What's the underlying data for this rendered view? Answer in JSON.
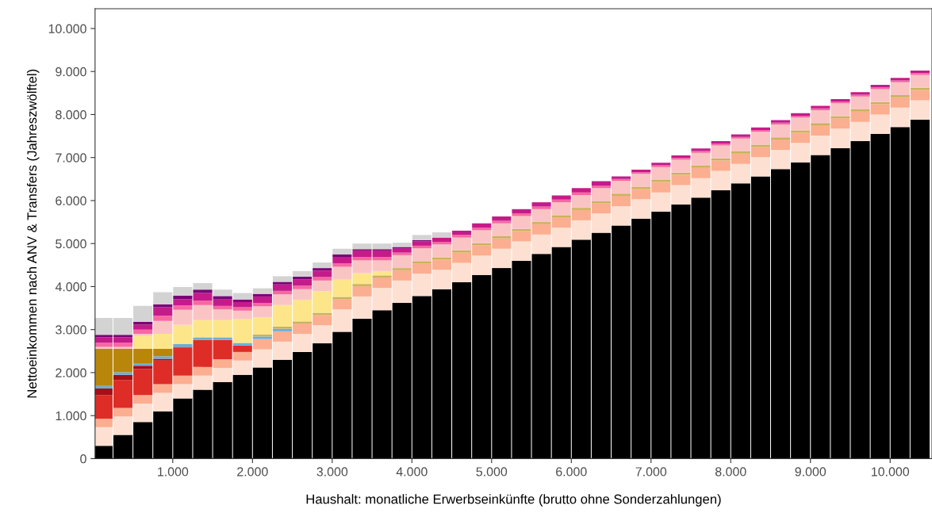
{
  "chart_data": {
    "type": "bar",
    "stacked": true,
    "xlabel": "Haushalt: monatliche Erwerbseinkünfte (brutto ohne Sonderzahlungen)",
    "ylabel": "Nettoeinkommen nach ANV & Transfers (Jahreszwölftel)",
    "x": [
      125,
      375,
      625,
      875,
      1125,
      1375,
      1625,
      1875,
      2125,
      2375,
      2625,
      2875,
      3125,
      3375,
      3625,
      3875,
      4125,
      4375,
      4625,
      4875,
      5125,
      5375,
      5625,
      5875,
      6125,
      6375,
      6625,
      6875,
      7125,
      7375,
      7625,
      7875,
      8125,
      8375,
      8625,
      8875,
      9125,
      9375,
      9625,
      9875,
      10125,
      10375
    ],
    "xlim": [
      25,
      10525
    ],
    "ylim": [
      0,
      10460
    ],
    "xticks": [
      {
        "value": 1000,
        "label": "1.000"
      },
      {
        "value": 2000,
        "label": "2.000"
      },
      {
        "value": 3000,
        "label": "3.000"
      },
      {
        "value": 4000,
        "label": "4.000"
      },
      {
        "value": 5000,
        "label": "5.000"
      },
      {
        "value": 6000,
        "label": "6.000"
      },
      {
        "value": 7000,
        "label": "7.000"
      },
      {
        "value": 8000,
        "label": "8.000"
      },
      {
        "value": 9000,
        "label": "9.000"
      },
      {
        "value": 10000,
        "label": "10.000"
      }
    ],
    "yticks": [
      0,
      {
        "value": 1000,
        "label": "1.000"
      },
      {
        "value": 2000,
        "label": "2.000"
      },
      {
        "value": 3000,
        "label": "3.000"
      },
      {
        "value": 4000,
        "label": "4.000"
      },
      {
        "value": 5000,
        "label": "5.000"
      },
      {
        "value": 6000,
        "label": "6.000"
      },
      {
        "value": 7000,
        "label": "7.000"
      },
      {
        "value": 8000,
        "label": "8.000"
      },
      {
        "value": 9000,
        "label": "9.000"
      },
      {
        "value": 10000,
        "label": "10.000"
      }
    ],
    "grid": false,
    "series": [
      {
        "color": "#000000",
        "values": [
          300,
          550,
          850,
          1100,
          1400,
          1600,
          1780,
          1950,
          2120,
          2300,
          2480,
          2680,
          2950,
          3250,
          3450,
          3620,
          3780,
          3940,
          4100,
          4270,
          4430,
          4600,
          4760,
          4920,
          5090,
          5250,
          5420,
          5580,
          5740,
          5910,
          6070,
          6240,
          6400,
          6560,
          6730,
          6890,
          7060,
          7220,
          7380,
          7550,
          7710,
          7880
        ]
      },
      {
        "color": "#fee0d2",
        "values": [
          430,
          430,
          430,
          430,
          330,
          330,
          330,
          330,
          420,
          420,
          420,
          420,
          520,
          520,
          520,
          520,
          520,
          450,
          450,
          450,
          450,
          450,
          450,
          450,
          450,
          450,
          450,
          450,
          450,
          450,
          450,
          450,
          450,
          450,
          450,
          450,
          450,
          450,
          450,
          450,
          450,
          450
        ]
      },
      {
        "color": "#fcae91",
        "values": [
          200,
          200,
          200,
          200,
          200,
          200,
          200,
          200,
          240,
          240,
          240,
          240,
          240,
          240,
          240,
          240,
          240,
          240,
          240,
          240,
          240,
          240,
          240,
          240,
          240,
          240,
          240,
          240,
          240,
          240,
          240,
          240,
          240,
          240,
          240,
          240,
          240,
          240,
          240,
          240,
          240,
          240
        ]
      },
      {
        "color": "#de2d26",
        "values": [
          550,
          650,
          600,
          550,
          650,
          630,
          450,
          150,
          0,
          0,
          0,
          0,
          0,
          0,
          0,
          0,
          0,
          0,
          0,
          0,
          0,
          0,
          0,
          0,
          0,
          0,
          0,
          0,
          0,
          0,
          0,
          0,
          0,
          0,
          0,
          0,
          0,
          0,
          0,
          0,
          0,
          0
        ]
      },
      {
        "color": "#a50f15",
        "values": [
          150,
          120,
          80,
          40,
          20,
          0,
          0,
          0,
          0,
          0,
          0,
          0,
          0,
          0,
          0,
          0,
          0,
          0,
          0,
          0,
          0,
          0,
          0,
          0,
          0,
          0,
          0,
          0,
          0,
          0,
          0,
          0,
          0,
          0,
          0,
          0,
          0,
          0,
          0,
          0,
          0,
          0
        ]
      },
      {
        "color": "#6baed6",
        "values": [
          60,
          60,
          60,
          60,
          60,
          60,
          60,
          60,
          60,
          60,
          0,
          0,
          0,
          0,
          0,
          0,
          0,
          0,
          0,
          0,
          0,
          0,
          0,
          0,
          0,
          0,
          0,
          0,
          0,
          0,
          0,
          0,
          0,
          0,
          0,
          0,
          0,
          0,
          0,
          0,
          0,
          0
        ]
      },
      {
        "color": "#c9b35a",
        "values": [
          0,
          0,
          0,
          0,
          0,
          0,
          0,
          0,
          50,
          50,
          50,
          50,
          50,
          50,
          50,
          50,
          50,
          50,
          50,
          50,
          50,
          50,
          50,
          50,
          50,
          50,
          50,
          50,
          50,
          50,
          50,
          50,
          50,
          50,
          50,
          50,
          50,
          50,
          50,
          50,
          50,
          50
        ]
      },
      {
        "color": "#b8860b",
        "values": [
          860,
          540,
          330,
          170,
          0,
          0,
          0,
          0,
          0,
          0,
          0,
          0,
          0,
          0,
          0,
          0,
          0,
          0,
          0,
          0,
          0,
          0,
          0,
          0,
          0,
          0,
          0,
          0,
          0,
          0,
          0,
          0,
          0,
          0,
          0,
          0,
          0,
          0,
          0,
          0,
          0,
          0
        ]
      },
      {
        "color": "#fde68a",
        "values": [
          0,
          0,
          300,
          350,
          450,
          400,
          400,
          550,
          400,
          500,
          500,
          500,
          400,
          250,
          100,
          0,
          0,
          0,
          0,
          0,
          0,
          0,
          0,
          0,
          0,
          0,
          0,
          0,
          0,
          0,
          0,
          0,
          0,
          0,
          0,
          0,
          0,
          0,
          0,
          0,
          0,
          0
        ]
      },
      {
        "color": "#fbc4c4",
        "values": [
          50,
          50,
          50,
          300,
          350,
          350,
          250,
          200,
          250,
          250,
          250,
          250,
          300,
          300,
          250,
          300,
          300,
          300,
          300,
          300,
          300,
          300,
          300,
          300,
          300,
          300,
          300,
          300,
          300,
          300,
          300,
          300,
          300,
          300,
          300,
          300,
          300,
          300,
          300,
          300,
          300,
          300
        ]
      },
      {
        "color": "#f768a1",
        "values": [
          100,
          100,
          100,
          120,
          100,
          100,
          80,
          80,
          80,
          80,
          80,
          80,
          80,
          80,
          80,
          60,
          60,
          60,
          60,
          60,
          60,
          60,
          60,
          60,
          60,
          60,
          40,
          40,
          40,
          40,
          40,
          40,
          40,
          40,
          40,
          40,
          40,
          40,
          40,
          40,
          40,
          40
        ]
      },
      {
        "color": "#c51b8a",
        "values": [
          120,
          120,
          120,
          200,
          150,
          180,
          150,
          120,
          150,
          150,
          150,
          150,
          150,
          150,
          150,
          100,
          100,
          100,
          100,
          100,
          100,
          100,
          100,
          100,
          100,
          100,
          60,
          60,
          60,
          60,
          60,
          60,
          60,
          60,
          60,
          60,
          60,
          60,
          60,
          60,
          60,
          60
        ]
      },
      {
        "color": "#7a0177",
        "values": [
          60,
          60,
          60,
          70,
          80,
          80,
          80,
          60,
          60,
          60,
          60,
          60,
          60,
          30,
          30,
          30,
          30,
          0,
          0,
          0,
          0,
          0,
          0,
          0,
          0,
          0,
          0,
          0,
          0,
          0,
          0,
          0,
          0,
          0,
          0,
          0,
          0,
          0,
          0,
          0,
          0,
          0
        ]
      },
      {
        "color": "#d3d3d3",
        "values": [
          390,
          390,
          370,
          280,
          200,
          150,
          150,
          150,
          130,
          130,
          130,
          130,
          130,
          130,
          130,
          100,
          120,
          120,
          0,
          0,
          0,
          0,
          0,
          0,
          0,
          0,
          0,
          0,
          0,
          0,
          0,
          0,
          0,
          0,
          0,
          0,
          0,
          0,
          0,
          0,
          0,
          0
        ]
      }
    ]
  }
}
